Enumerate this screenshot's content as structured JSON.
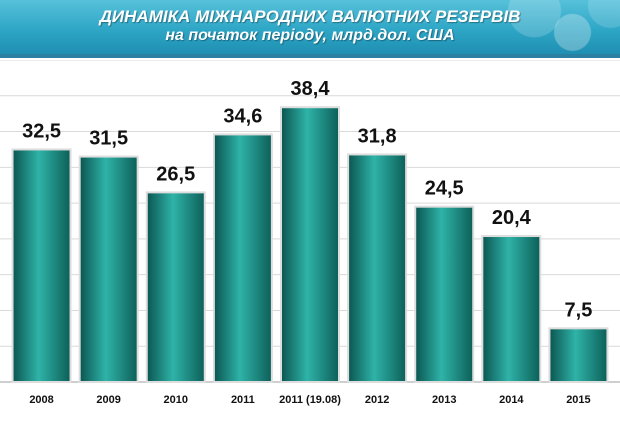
{
  "header": {
    "title": "ДИНАМІКА МІЖНАРОДНИХ ВАЛЮТНИХ РЕЗЕРВІВ",
    "subtitle": "на початок періоду, млрд.дол. США"
  },
  "colors": {
    "banner": "#2ea6c6",
    "bar_light": "#2fb3a8",
    "bar_dark": "#0c5f58",
    "bar_outline": "#dddddd",
    "grid": "#d9d9d9"
  },
  "chart_data": {
    "type": "bar",
    "title": "",
    "xlabel": "",
    "ylabel": "",
    "categories": [
      "2008",
      "2009",
      "2010",
      "2011",
      "2011 (19.08)",
      "2012",
      "2013",
      "2014",
      "2015"
    ],
    "values": [
      32.5,
      31.5,
      26.5,
      34.6,
      38.4,
      31.8,
      24.5,
      20.4,
      7.5
    ],
    "data_labels": [
      "32,5",
      "31,5",
      "26,5",
      "34,6",
      "38,4",
      "31,8",
      "24,5",
      "20,4",
      "7,5"
    ],
    "ylim": [
      0,
      45
    ],
    "grid": true
  }
}
